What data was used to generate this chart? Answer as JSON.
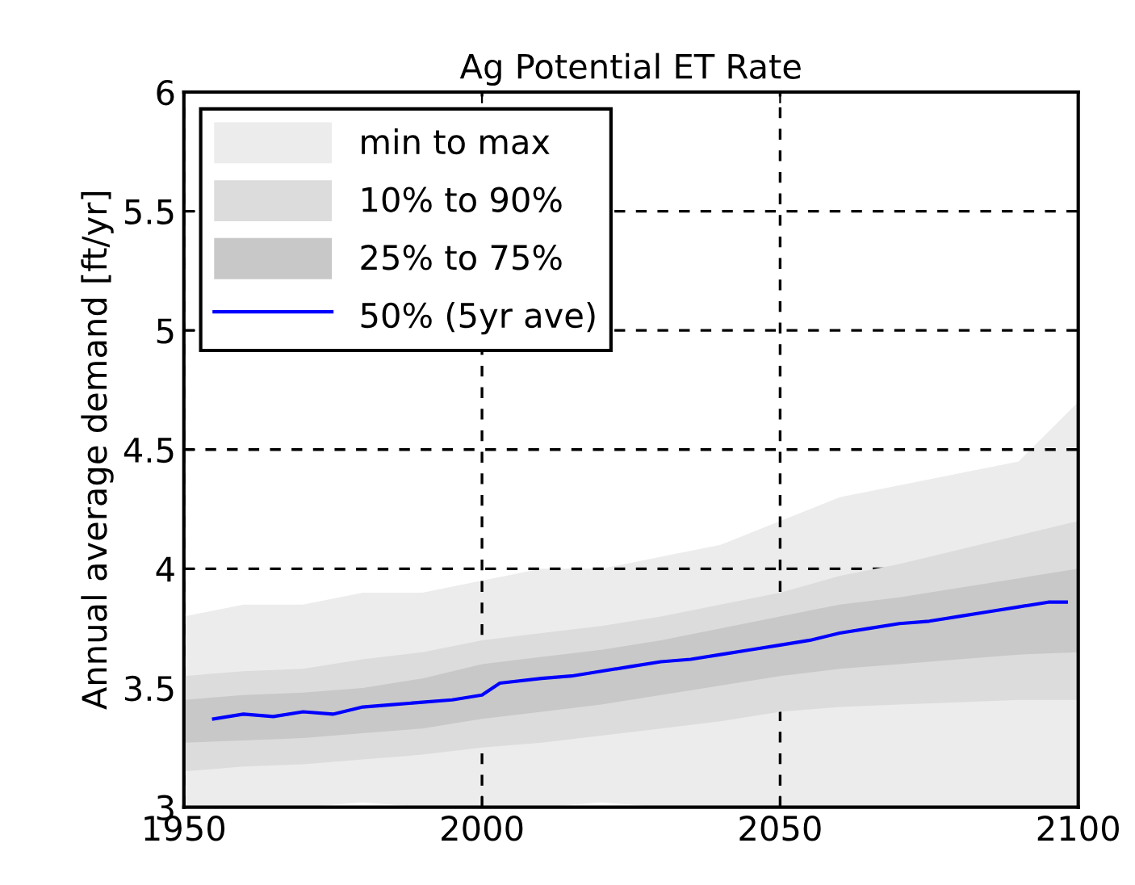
{
  "chart_data": {
    "type": "area",
    "title": "Ag Potential ET Rate",
    "ylabel": "Annual average demand [ft/yr]",
    "x": [
      1950,
      1960,
      1970,
      1980,
      1990,
      2000,
      2010,
      2020,
      2030,
      2040,
      2050,
      2060,
      2070,
      2080,
      2090,
      2100
    ],
    "series": [
      {
        "name": "min to max",
        "values": [
          null,
          null,
          null,
          null,
          null,
          null,
          null,
          null,
          null,
          null,
          null,
          null,
          null,
          null,
          null,
          null
        ],
        "color": "#ececec",
        "lower": [
          3.0,
          3.0,
          3.0,
          3.02,
          3.0,
          3.0,
          3.0,
          3.02,
          3.0,
          3.0,
          3.0,
          3.0,
          3.0,
          3.0,
          3.0,
          3.0
        ],
        "upper": [
          3.8,
          3.85,
          3.85,
          3.9,
          3.9,
          3.95,
          4.0,
          4.0,
          4.05,
          4.1,
          4.2,
          4.3,
          4.35,
          4.4,
          4.45,
          4.7
        ]
      },
      {
        "name": "10% to 90%",
        "values": [
          null,
          null,
          null,
          null,
          null,
          null,
          null,
          null,
          null,
          null,
          null,
          null,
          null,
          null,
          null,
          null
        ],
        "color": "#dcdcdc",
        "lower": [
          3.15,
          3.17,
          3.18,
          3.2,
          3.22,
          3.25,
          3.27,
          3.3,
          3.33,
          3.36,
          3.4,
          3.42,
          3.43,
          3.44,
          3.45,
          3.45
        ],
        "upper": [
          3.55,
          3.57,
          3.58,
          3.62,
          3.65,
          3.7,
          3.73,
          3.76,
          3.8,
          3.85,
          3.9,
          3.97,
          4.02,
          4.08,
          4.14,
          4.2
        ]
      },
      {
        "name": "25% to 75%",
        "values": [
          null,
          null,
          null,
          null,
          null,
          null,
          null,
          null,
          null,
          null,
          null,
          null,
          null,
          null,
          null,
          null
        ],
        "color": "#c8c8c8",
        "lower": [
          3.27,
          3.28,
          3.29,
          3.31,
          3.33,
          3.37,
          3.4,
          3.43,
          3.47,
          3.51,
          3.55,
          3.58,
          3.6,
          3.62,
          3.64,
          3.65
        ],
        "upper": [
          3.45,
          3.47,
          3.48,
          3.5,
          3.54,
          3.6,
          3.63,
          3.66,
          3.7,
          3.75,
          3.8,
          3.85,
          3.88,
          3.92,
          3.96,
          4.0
        ]
      },
      {
        "name": "50% (5yr ave)",
        "type": "line",
        "color": "#0000ff",
        "x": [
          1955,
          1960,
          1965,
          1970,
          1975,
          1980,
          1985,
          1990,
          1995,
          2000,
          2003,
          2010,
          2015,
          2020,
          2025,
          2030,
          2035,
          2040,
          2045,
          2050,
          2055,
          2060,
          2065,
          2070,
          2075,
          2080,
          2085,
          2090,
          2095,
          2098
        ],
        "values": [
          3.37,
          3.39,
          3.38,
          3.4,
          3.39,
          3.42,
          3.43,
          3.44,
          3.45,
          3.47,
          3.52,
          3.54,
          3.55,
          3.57,
          3.59,
          3.61,
          3.62,
          3.64,
          3.66,
          3.68,
          3.7,
          3.73,
          3.75,
          3.77,
          3.78,
          3.8,
          3.82,
          3.84,
          3.86,
          3.86
        ]
      }
    ],
    "xlim": [
      1950,
      2100
    ],
    "xticks": [
      1950,
      2000,
      2050,
      2100
    ],
    "ylim": [
      3,
      6
    ],
    "yticks": [
      3,
      3.5,
      4,
      4.5,
      5,
      5.5,
      6
    ],
    "grid": true,
    "legend": "top left"
  }
}
